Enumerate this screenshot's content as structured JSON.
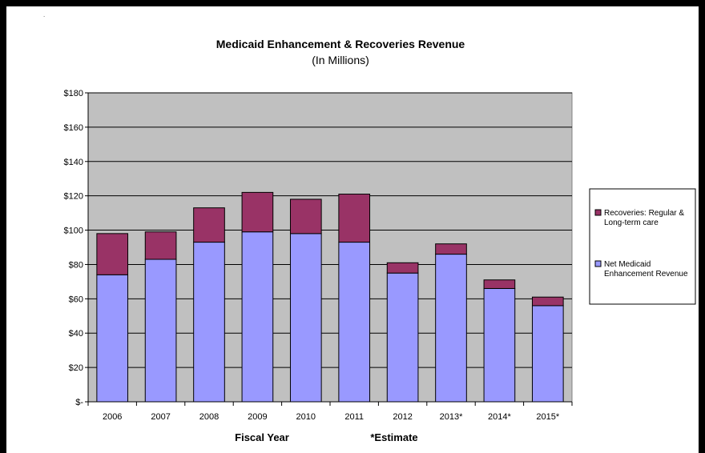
{
  "chart_data": {
    "type": "bar",
    "stacked": true,
    "title": "Medicaid Enhancement & Recoveries Revenue",
    "subtitle": "(In Millions)",
    "xlabel": "Fiscal Year",
    "x_note": "*Estimate",
    "ylabel": "",
    "ylim": [
      0,
      180
    ],
    "ytick_step": 20,
    "ytick_labels": [
      "$-",
      "$20",
      "$40",
      "$60",
      "$80",
      "$100",
      "$120",
      "$140",
      "$160",
      "$180"
    ],
    "grid": true,
    "legend_position": "right",
    "categories": [
      "2006",
      "2007",
      "2008",
      "2009",
      "2010",
      "2011",
      "2012",
      "2013*",
      "2014*",
      "2015*"
    ],
    "series": [
      {
        "name": "Net Medicaid Enhancement Revenue",
        "legend_lines": [
          "Net Medicaid",
          "Enhancement Revenue"
        ],
        "color": "#9999ff",
        "values": [
          74,
          83,
          93,
          99,
          98,
          93,
          75,
          86,
          66,
          56
        ]
      },
      {
        "name": "Recoveries: Regular & Long-term care",
        "legend_lines": [
          "Recoveries: Regular &",
          "Long-term care"
        ],
        "color": "#993366",
        "values": [
          24,
          16,
          20,
          23,
          20,
          28,
          6,
          6,
          5,
          5
        ]
      }
    ],
    "plot_background": "#c0c0c0"
  }
}
